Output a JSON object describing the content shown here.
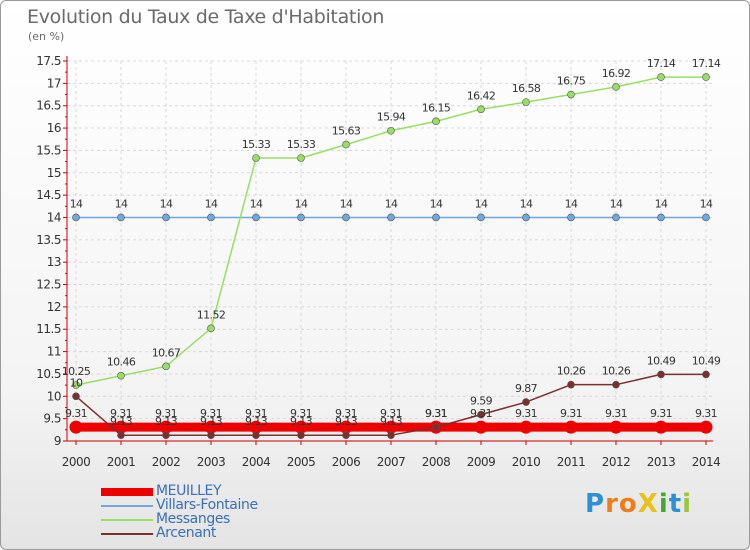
{
  "chart_data": {
    "type": "line",
    "title": "Evolution du Taux de Taxe d'Habitation",
    "subtitle": "(en %)",
    "x": [
      "2000",
      "2001",
      "2002",
      "2003",
      "2004",
      "2005",
      "2006",
      "2007",
      "2008",
      "2009",
      "2010",
      "2011",
      "2012",
      "2013",
      "2014"
    ],
    "ylim": [
      9,
      17.5
    ],
    "yticks": [
      "9",
      "9.5",
      "10",
      "10.5",
      "11",
      "11.5",
      "12",
      "12.5",
      "13",
      "13.5",
      "14",
      "14.5",
      "15",
      "15.5",
      "16",
      "16.5",
      "17",
      "17.5"
    ],
    "grid": true,
    "legend_position": "bottom-left",
    "series": [
      {
        "name": "MEUILLEY",
        "color": "#ee0000",
        "values": [
          9.31,
          9.31,
          9.31,
          9.31,
          9.31,
          9.31,
          9.31,
          9.31,
          9.31,
          9.31,
          9.31,
          9.31,
          9.31,
          9.31,
          9.31
        ],
        "labels": [
          "9.31",
          "9.31",
          "9.31",
          "9.31",
          "9.31",
          "9.31",
          "9.31",
          "9.31",
          "9.31",
          "9.31",
          "9.31",
          "9.31",
          "9.31",
          "9.31",
          "9.31"
        ]
      },
      {
        "name": "Villars-Fontaine",
        "color": "#6fa8dc",
        "values": [
          14,
          14,
          14,
          14,
          14,
          14,
          14,
          14,
          14,
          14,
          14,
          14,
          14,
          14,
          14
        ],
        "labels": [
          "14",
          "14",
          "14",
          "14",
          "14",
          "14",
          "14",
          "14",
          "14",
          "14",
          "14",
          "14",
          "14",
          "14",
          "14"
        ]
      },
      {
        "name": "Messanges",
        "color": "#99dd66",
        "values": [
          10.25,
          10.46,
          10.67,
          11.52,
          15.33,
          15.33,
          15.63,
          15.94,
          16.15,
          16.42,
          16.58,
          16.75,
          16.92,
          17.14,
          17.14
        ],
        "labels": [
          "10.25",
          "10.46",
          "10.67",
          "11.52",
          "15.33",
          "15.33",
          "15.63",
          "15.94",
          "16.15",
          "16.42",
          "16.58",
          "16.75",
          "16.92",
          "17.14",
          "17.14"
        ]
      },
      {
        "name": "Arcenant",
        "color": "#7a3030",
        "values": [
          10,
          9.13,
          9.13,
          9.13,
          9.13,
          9.13,
          9.13,
          9.13,
          9.31,
          9.59,
          9.87,
          10.26,
          10.26,
          10.49,
          10.49
        ],
        "labels": [
          "10",
          "9.13",
          "9.13",
          "9.13",
          "9.13",
          "9.13",
          "9.13",
          "9.13",
          "9.31",
          "9.59",
          "9.87",
          "10.26",
          "10.26",
          "10.49",
          "10.49"
        ]
      }
    ]
  },
  "brand": {
    "text": "ProXiti",
    "letters": [
      "P",
      "r",
      "o",
      "X",
      "i",
      "t",
      "i"
    ],
    "colors": [
      "#2f8fd6",
      "#ef7d1a",
      "#ef7d1a",
      "#e8c21a",
      "#46a834",
      "#2f8fd6",
      "#9bc43a"
    ]
  }
}
